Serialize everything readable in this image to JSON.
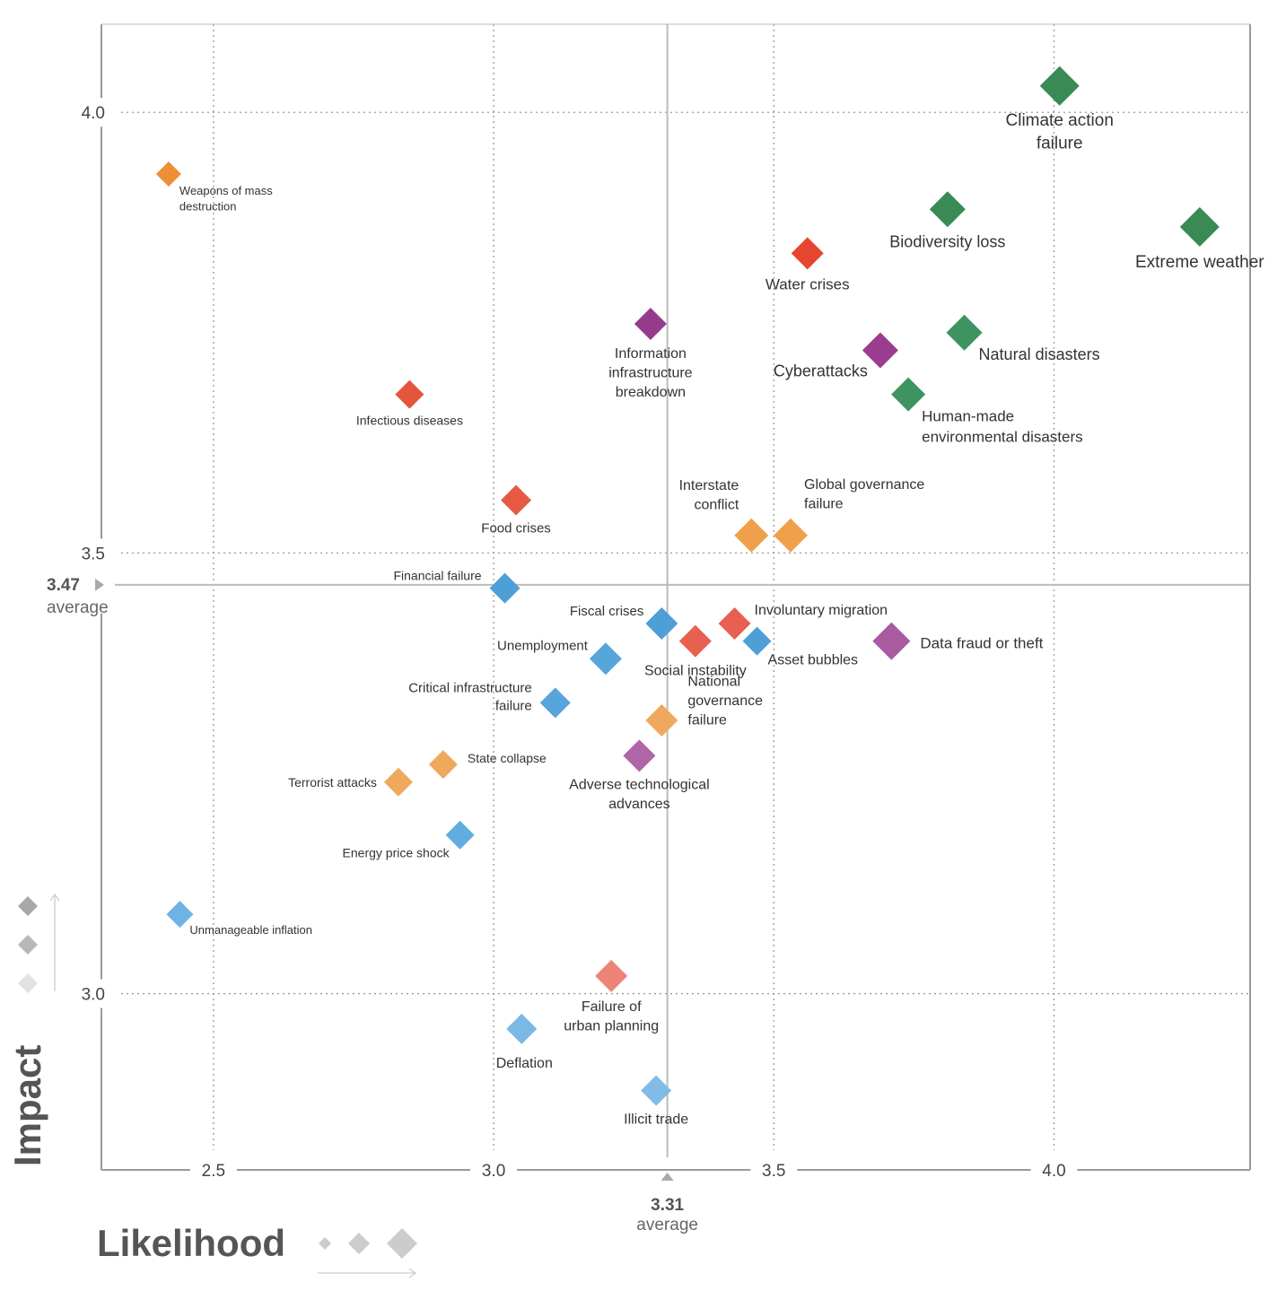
{
  "chart_data": {
    "type": "scatter",
    "title": "",
    "xlabel": "Likelihood",
    "ylabel": "Impact",
    "xlim": [
      2.3,
      4.35
    ],
    "ylim": [
      2.8,
      4.1
    ],
    "xticks": [
      2.5,
      3.0,
      3.5,
      4.0
    ],
    "xtick_labels": [
      "2.5",
      "3.0",
      "3.5",
      "4.0"
    ],
    "yticks": [
      3.0,
      3.5,
      4.0
    ],
    "ytick_labels": [
      "3.0",
      "3.5",
      "4.0"
    ],
    "grid": true,
    "averages": {
      "x": {
        "value": 3.31,
        "value_label": "3.31",
        "word": "average"
      },
      "y": {
        "value": 3.47,
        "value_label": "3.47",
        "word": "average"
      }
    },
    "categories": {
      "environmental": "#3a8a55",
      "societal": "#e5553d",
      "technological": "#9b3d8f",
      "geopolitical": "#f0a04b",
      "economic": "#4e9fd8"
    },
    "points": [
      {
        "name": "Climate action failure",
        "lines": [
          "Climate action",
          "failure"
        ],
        "x": 4.01,
        "y": 4.03,
        "category": "environmental",
        "color": "#3a8a55"
      },
      {
        "name": "Extreme weather",
        "lines": [
          "Extreme weather"
        ],
        "x": 4.26,
        "y": 3.87,
        "category": "environmental",
        "color": "#3a8a55"
      },
      {
        "name": "Biodiversity loss",
        "lines": [
          "Biodiversity loss"
        ],
        "x": 3.81,
        "y": 3.89,
        "category": "environmental",
        "color": "#3a8a55"
      },
      {
        "name": "Natural disasters",
        "lines": [
          "Natural disasters"
        ],
        "x": 3.84,
        "y": 3.75,
        "category": "environmental",
        "color": "#3d9460"
      },
      {
        "name": "Human-made environmental disasters",
        "lines": [
          "Human-made",
          "environmental disasters"
        ],
        "x": 3.74,
        "y": 3.68,
        "category": "environmental",
        "color": "#3d9460"
      },
      {
        "name": "Water crises",
        "lines": [
          "Water crises"
        ],
        "x": 3.56,
        "y": 3.84,
        "category": "societal",
        "color": "#e4462f"
      },
      {
        "name": "Infectious diseases",
        "lines": [
          "Infectious diseases"
        ],
        "x": 2.85,
        "y": 3.68,
        "category": "societal",
        "color": "#e5553d"
      },
      {
        "name": "Food crises",
        "lines": [
          "Food crises"
        ],
        "x": 3.04,
        "y": 3.56,
        "category": "societal",
        "color": "#e65a45"
      },
      {
        "name": "Involuntary migration",
        "lines": [
          "Involuntary migration"
        ],
        "x": 3.43,
        "y": 3.42,
        "category": "societal",
        "color": "#e8604f"
      },
      {
        "name": "Social instability",
        "lines": [
          "Social instability"
        ],
        "x": 3.36,
        "y": 3.4,
        "category": "societal",
        "color": "#e8604f"
      },
      {
        "name": "Failure of urban planning",
        "lines": [
          "Failure of",
          "urban planning"
        ],
        "x": 3.21,
        "y": 3.02,
        "category": "societal",
        "color": "#ee8378"
      },
      {
        "name": "Information infrastructure breakdown",
        "lines": [
          "Information",
          "infrastructure",
          "breakdown"
        ],
        "x": 3.28,
        "y": 3.76,
        "category": "technological",
        "color": "#963b8c"
      },
      {
        "name": "Cyberattacks",
        "lines": [
          "Cyberattacks"
        ],
        "x": 3.69,
        "y": 3.73,
        "category": "technological",
        "color": "#9b3d8f"
      },
      {
        "name": "Data fraud or theft",
        "lines": [
          "Data fraud or theft"
        ],
        "x": 3.71,
        "y": 3.4,
        "category": "technological",
        "color": "#a95aa0"
      },
      {
        "name": "Adverse technological advances",
        "lines": [
          "Adverse technological",
          "advances"
        ],
        "x": 3.26,
        "y": 3.27,
        "category": "technological",
        "color": "#b066a6"
      },
      {
        "name": "Weapons of mass destruction",
        "lines": [
          "Weapons of mass",
          "destruction"
        ],
        "x": 2.42,
        "y": 3.93,
        "category": "geopolitical",
        "color": "#ec8f35"
      },
      {
        "name": "Interstate conflict",
        "lines": [
          "Interstate",
          "conflict"
        ],
        "x": 3.46,
        "y": 3.52,
        "category": "geopolitical",
        "color": "#f0a04b"
      },
      {
        "name": "Global governance failure",
        "lines": [
          "Global governance",
          "failure"
        ],
        "x": 3.53,
        "y": 3.52,
        "category": "geopolitical",
        "color": "#f0a04b"
      },
      {
        "name": "National governance failure",
        "lines": [
          "National",
          "governance",
          "failure"
        ],
        "x": 3.3,
        "y": 3.31,
        "category": "geopolitical",
        "color": "#f0a95c"
      },
      {
        "name": "State collapse",
        "lines": [
          "State collapse"
        ],
        "x": 2.91,
        "y": 3.26,
        "category": "geopolitical",
        "color": "#f0a95c"
      },
      {
        "name": "Terrorist attacks",
        "lines": [
          "Terrorist attacks"
        ],
        "x": 2.83,
        "y": 3.24,
        "category": "geopolitical",
        "color": "#f0a95c"
      },
      {
        "name": "Financial failure",
        "lines": [
          "Financial failure"
        ],
        "x": 3.02,
        "y": 3.46,
        "category": "economic",
        "color": "#4e9fd8"
      },
      {
        "name": "Fiscal crises",
        "lines": [
          "Fiscal crises"
        ],
        "x": 3.3,
        "y": 3.42,
        "category": "economic",
        "color": "#4e9fd8"
      },
      {
        "name": "Asset bubbles",
        "lines": [
          "Asset bubbles"
        ],
        "x": 3.47,
        "y": 3.4,
        "category": "economic",
        "color": "#4e9fd8"
      },
      {
        "name": "Unemployment",
        "lines": [
          "Unemployment"
        ],
        "x": 3.2,
        "y": 3.38,
        "category": "economic",
        "color": "#57a5db"
      },
      {
        "name": "Critical infrastructure failure",
        "lines": [
          "Critical infrastructure",
          "failure"
        ],
        "x": 3.11,
        "y": 3.33,
        "category": "economic",
        "color": "#57a5db"
      },
      {
        "name": "Energy price shock",
        "lines": [
          "Energy price shock"
        ],
        "x": 2.94,
        "y": 3.18,
        "category": "economic",
        "color": "#62ade0"
      },
      {
        "name": "Unmanageable inflation",
        "lines": [
          "Unmanageable inflation"
        ],
        "x": 2.44,
        "y": 3.09,
        "category": "economic",
        "color": "#6db3e3"
      },
      {
        "name": "Deflation",
        "lines": [
          "Deflation"
        ],
        "x": 3.05,
        "y": 2.96,
        "category": "economic",
        "color": "#7ab9e5"
      },
      {
        "name": "Illicit trade",
        "lines": [
          "Illicit trade"
        ],
        "x": 3.29,
        "y": 2.89,
        "category": "economic",
        "color": "#80bce5"
      }
    ],
    "legend": {
      "impact_scale": "increasing",
      "likelihood_scale": "increasing"
    }
  }
}
